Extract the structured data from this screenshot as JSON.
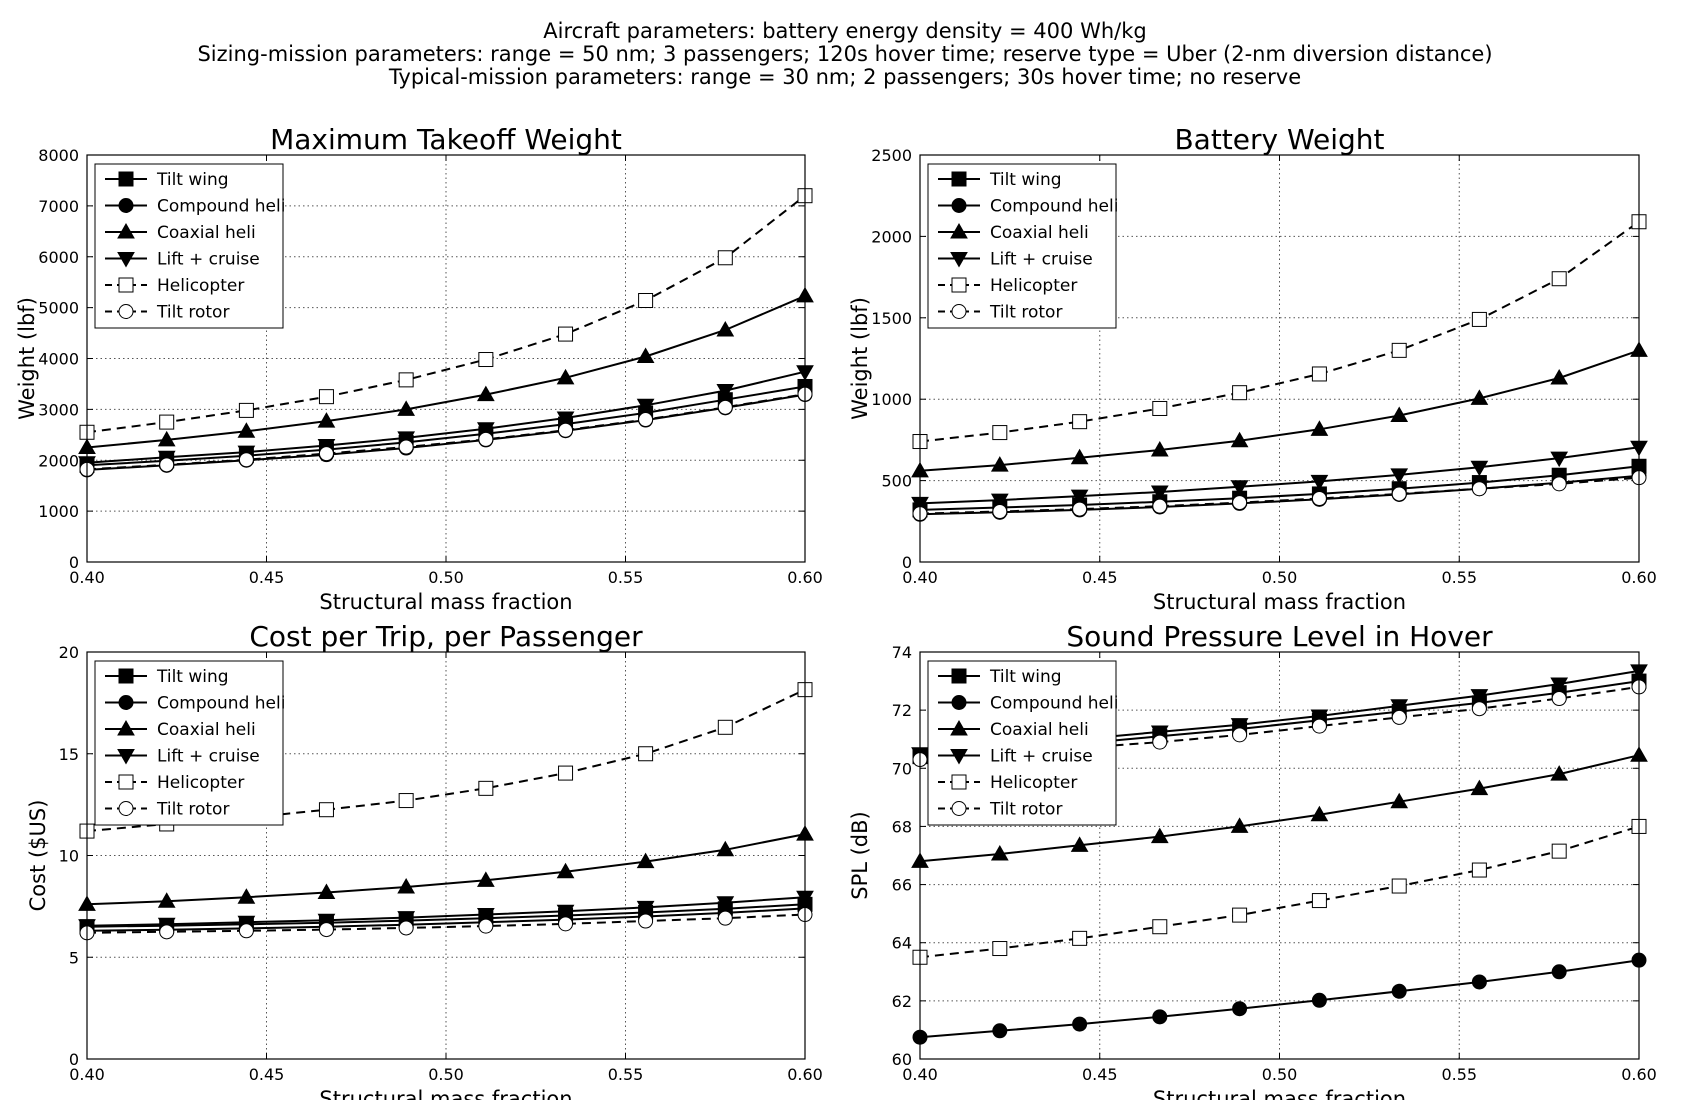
{
  "header": {
    "line1": "Aircraft parameters: battery energy density = 400 Wh/kg",
    "line2": "Sizing-mission parameters: range = 50 nm; 3 passengers; 120s hover time; reserve type = Uber (2-nm diversion distance)",
    "line3": "Typical-mission parameters: range = 30 nm; 2 passengers; 30s hover time; no reserve"
  },
  "legend_entries": [
    {
      "label": "Tilt wing",
      "marker": "square-filled",
      "dashed": false
    },
    {
      "label": "Compound heli",
      "marker": "circle-filled",
      "dashed": false
    },
    {
      "label": "Coaxial heli",
      "marker": "triangle-up-filled",
      "dashed": false
    },
    {
      "label": "Lift + cruise",
      "marker": "triangle-down-filled",
      "dashed": false
    },
    {
      "label": "Helicopter",
      "marker": "square-open",
      "dashed": true
    },
    {
      "label": "Tilt rotor",
      "marker": "circle-open",
      "dashed": true
    }
  ],
  "chart_data": [
    {
      "type": "line",
      "title": "Maximum Takeoff Weight",
      "xlabel": "Structural mass fraction",
      "ylabel": "Weight (lbf)",
      "xlim": [
        0.4,
        0.6
      ],
      "ylim": [
        0,
        8000
      ],
      "xticks": [
        "0.40",
        "0.45",
        "0.50",
        "0.55",
        "0.60"
      ],
      "yticks": [
        "0",
        "1000",
        "2000",
        "3000",
        "4000",
        "5000",
        "6000",
        "7000",
        "8000"
      ],
      "grid": true,
      "legend": "top-left",
      "x": [
        0.4,
        0.4222,
        0.4444,
        0.4667,
        0.4889,
        0.5111,
        0.5333,
        0.5556,
        0.5778,
        0.6
      ],
      "series": [
        {
          "name": "Tilt wing",
          "values": [
            1900,
            1990,
            2090,
            2210,
            2350,
            2520,
            2710,
            2930,
            3190,
            3450
          ]
        },
        {
          "name": "Compound heli",
          "values": [
            1810,
            1900,
            2000,
            2110,
            2240,
            2400,
            2580,
            2790,
            3030,
            3290
          ]
        },
        {
          "name": "Coaxial heli",
          "values": [
            2250,
            2400,
            2570,
            2770,
            3000,
            3290,
            3620,
            4040,
            4560,
            5230
          ]
        },
        {
          "name": "Lift + cruise",
          "values": [
            1950,
            2060,
            2160,
            2290,
            2440,
            2620,
            2830,
            3080,
            3370,
            3740
          ]
        },
        {
          "name": "Helicopter",
          "values": [
            2550,
            2750,
            2980,
            3250,
            3580,
            3980,
            4480,
            5140,
            5980,
            7200
          ]
        },
        {
          "name": "Tilt rotor",
          "values": [
            1820,
            1910,
            2010,
            2130,
            2260,
            2410,
            2590,
            2800,
            3040,
            3300
          ]
        }
      ]
    },
    {
      "type": "line",
      "title": "Battery Weight",
      "xlabel": "Structural mass fraction",
      "ylabel": "Weight (lbf)",
      "xlim": [
        0.4,
        0.6
      ],
      "ylim": [
        0,
        2500
      ],
      "xticks": [
        "0.40",
        "0.45",
        "0.50",
        "0.55",
        "0.60"
      ],
      "yticks": [
        "0",
        "500",
        "1000",
        "1500",
        "2000",
        "2500"
      ],
      "grid": true,
      "legend": "top-left",
      "x": [
        0.4,
        0.4222,
        0.4444,
        0.4667,
        0.4889,
        0.5111,
        0.5333,
        0.5556,
        0.5778,
        0.6
      ],
      "series": [
        {
          "name": "Tilt wing",
          "values": [
            320,
            335,
            350,
            370,
            392,
            418,
            450,
            488,
            533,
            588
          ]
        },
        {
          "name": "Compound heli",
          "values": [
            293,
            305,
            320,
            338,
            360,
            385,
            415,
            450,
            487,
            530
          ]
        },
        {
          "name": "Coaxial heli",
          "values": [
            560,
            595,
            640,
            688,
            745,
            815,
            900,
            1005,
            1130,
            1300
          ]
        },
        {
          "name": "Lift + cruise",
          "values": [
            360,
            380,
            405,
            430,
            462,
            495,
            535,
            582,
            638,
            705
          ]
        },
        {
          "name": "Helicopter",
          "values": [
            740,
            795,
            862,
            943,
            1040,
            1155,
            1300,
            1490,
            1740,
            2090
          ]
        },
        {
          "name": "Tilt rotor",
          "values": [
            297,
            310,
            325,
            343,
            365,
            390,
            418,
            450,
            480,
            518
          ]
        }
      ]
    },
    {
      "type": "line",
      "title": "Cost per Trip, per Passenger",
      "xlabel": "Structural mass fraction",
      "ylabel": "Cost ($US)",
      "xlim": [
        0.4,
        0.6
      ],
      "ylim": [
        0,
        20
      ],
      "xticks": [
        "0.40",
        "0.45",
        "0.50",
        "0.55",
        "0.60"
      ],
      "yticks": [
        "0",
        "5",
        "10",
        "15",
        "20"
      ],
      "grid": true,
      "legend": "top-left",
      "x": [
        0.4,
        0.4222,
        0.4444,
        0.4667,
        0.4889,
        0.5111,
        0.5333,
        0.5556,
        0.5778,
        0.6
      ],
      "series": [
        {
          "name": "Tilt wing",
          "values": [
            6.5,
            6.55,
            6.62,
            6.7,
            6.8,
            6.92,
            7.05,
            7.2,
            7.38,
            7.6
          ]
        },
        {
          "name": "Compound heli",
          "values": [
            6.3,
            6.35,
            6.42,
            6.5,
            6.6,
            6.72,
            6.85,
            7.0,
            7.18,
            7.4
          ]
        },
        {
          "name": "Coaxial heli",
          "values": [
            7.6,
            7.75,
            7.95,
            8.18,
            8.45,
            8.78,
            9.2,
            9.7,
            10.28,
            11.05
          ]
        },
        {
          "name": "Lift + cruise",
          "values": [
            6.55,
            6.62,
            6.72,
            6.82,
            6.95,
            7.1,
            7.26,
            7.45,
            7.68,
            7.95
          ]
        },
        {
          "name": "Helicopter",
          "values": [
            11.2,
            11.55,
            11.85,
            12.25,
            12.7,
            13.3,
            14.05,
            15.0,
            16.3,
            18.15
          ]
        },
        {
          "name": "Tilt rotor",
          "values": [
            6.2,
            6.25,
            6.3,
            6.36,
            6.44,
            6.53,
            6.64,
            6.78,
            6.92,
            7.1
          ]
        }
      ]
    },
    {
      "type": "line",
      "title": "Sound Pressure Level in Hover",
      "xlabel": "Structural mass fraction",
      "ylabel": "SPL (dB)",
      "xlim": [
        0.4,
        0.6
      ],
      "ylim": [
        60,
        74
      ],
      "xticks": [
        "0.40",
        "0.45",
        "0.50",
        "0.55",
        "0.60"
      ],
      "yticks": [
        "60",
        "62",
        "64",
        "66",
        "68",
        "70",
        "72",
        "74"
      ],
      "grid": true,
      "legend": "top-left",
      "x": [
        0.4,
        0.4222,
        0.4444,
        0.4667,
        0.4889,
        0.5111,
        0.5333,
        0.5556,
        0.5778,
        0.6
      ],
      "series": [
        {
          "name": "Tilt wing",
          "values": [
            70.4,
            70.6,
            70.85,
            71.1,
            71.35,
            71.65,
            71.95,
            72.25,
            72.6,
            73.0
          ]
        },
        {
          "name": "Compound heli",
          "values": [
            60.75,
            60.97,
            61.2,
            61.45,
            61.73,
            62.02,
            62.33,
            62.65,
            63.0,
            63.4
          ]
        },
        {
          "name": "Coaxial heli",
          "values": [
            66.8,
            67.05,
            67.35,
            67.65,
            68.0,
            68.4,
            68.85,
            69.3,
            69.8,
            70.45
          ]
        },
        {
          "name": "Lift + cruise",
          "values": [
            70.5,
            70.75,
            71.0,
            71.25,
            71.5,
            71.8,
            72.15,
            72.5,
            72.9,
            73.35
          ]
        },
        {
          "name": "Helicopter",
          "values": [
            63.5,
            63.8,
            64.15,
            64.55,
            64.95,
            65.45,
            65.95,
            66.5,
            67.15,
            68.0
          ]
        },
        {
          "name": "Tilt rotor",
          "values": [
            70.3,
            70.5,
            70.7,
            70.9,
            71.15,
            71.45,
            71.75,
            72.05,
            72.4,
            72.8
          ]
        }
      ]
    }
  ]
}
